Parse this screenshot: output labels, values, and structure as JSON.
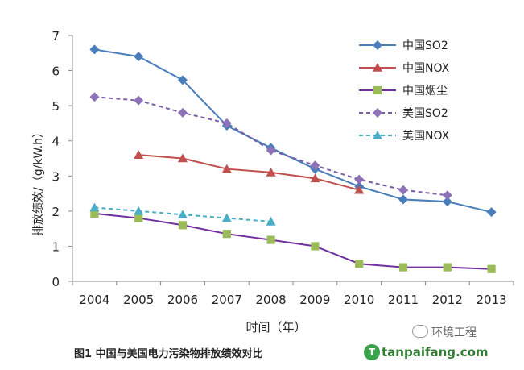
{
  "chart_data": {
    "type": "line",
    "caption": "图1  中国与美国电力污染物排放绩效对比",
    "xlabel": "时间（年）",
    "ylabel": "排放绩效/（g/kW.h）",
    "ylim": [
      0,
      7
    ],
    "yticks": [
      0,
      1,
      2,
      3,
      4,
      5,
      6,
      7
    ],
    "categories": [
      "2004",
      "2005",
      "2006",
      "2007",
      "2008",
      "2009",
      "2010",
      "2011",
      "2012",
      "2013"
    ],
    "grid": false,
    "legend_position": "top-right",
    "series": [
      {
        "name": "中国SO2",
        "color": "#4a7ebb",
        "marker": "diamond",
        "dashed": false,
        "values": [
          6.6,
          6.4,
          5.73,
          4.43,
          3.8,
          3.2,
          2.7,
          2.33,
          2.27,
          1.97
        ]
      },
      {
        "name": "中国NOX",
        "color": "#c0504d",
        "marker": "triangle",
        "dashed": false,
        "values": [
          null,
          3.6,
          3.5,
          3.2,
          3.1,
          2.93,
          2.6,
          null,
          null,
          null
        ]
      },
      {
        "name": "中国烟尘",
        "color": "#7030a0",
        "marker": "square",
        "marker_color": "#9bbb59",
        "dashed": false,
        "values": [
          1.93,
          1.8,
          1.6,
          1.35,
          1.18,
          1.0,
          0.5,
          0.4,
          0.4,
          0.35
        ]
      },
      {
        "name": "美国SO2",
        "color": "#7b5ea7",
        "marker": "diamond",
        "marker_color": "#8e72b8",
        "dashed": true,
        "values": [
          5.25,
          5.15,
          4.8,
          4.5,
          3.73,
          3.3,
          2.9,
          2.6,
          2.45,
          null
        ]
      },
      {
        "name": "美国NOX",
        "color": "#4bacc6",
        "marker": "triangle",
        "dashed": true,
        "values": [
          2.1,
          2.0,
          1.9,
          1.8,
          1.7,
          null,
          null,
          null,
          null,
          null
        ]
      }
    ]
  },
  "watermark": {
    "wechat": "环境工程",
    "site": "tanpaifang.com",
    "logo_text": "T"
  }
}
